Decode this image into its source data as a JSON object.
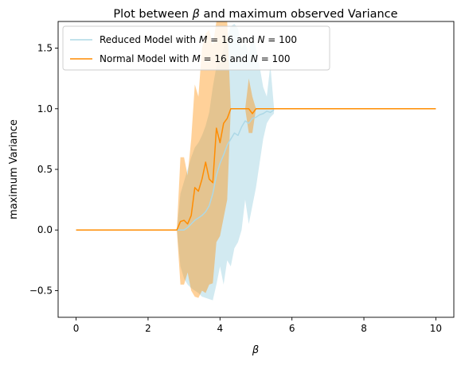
{
  "chart_data": {
    "type": "line",
    "title_prefix": "Plot between ",
    "title_symbol": "β",
    "title_suffix": " and maximum observed Variance",
    "xlabel": "β",
    "ylabel": "maximum Variance",
    "xlim": [
      -0.5,
      10.5
    ],
    "ylim": [
      -0.72,
      1.72
    ],
    "xticks": [
      "0",
      "2",
      "4",
      "6",
      "8",
      "10"
    ],
    "yticks": [
      "−0.5",
      "0.0",
      "0.5",
      "1.0",
      "1.5"
    ],
    "grid": false,
    "legend_position": "top-left",
    "series": [
      {
        "name_prefix": "Reduced Model with ",
        "name_m": "M",
        "name_mid": " = 16 and ",
        "name_n": "N",
        "name_suffix": " = 100",
        "color": "#add8e6",
        "x": [
          0,
          2.8,
          2.9,
          3.0,
          3.1,
          3.2,
          3.3,
          3.4,
          3.5,
          3.6,
          3.7,
          3.8,
          3.9,
          4.0,
          4.1,
          4.2,
          4.3,
          4.4,
          4.5,
          4.6,
          4.7,
          4.8,
          4.9,
          5.0,
          5.1,
          5.2,
          5.3,
          5.4,
          5.5
        ],
        "y": [
          0,
          0,
          0.0,
          0.0,
          0.02,
          0.05,
          0.08,
          0.1,
          0.12,
          0.15,
          0.2,
          0.3,
          0.45,
          0.55,
          0.62,
          0.7,
          0.75,
          0.8,
          0.78,
          0.85,
          0.9,
          0.88,
          0.92,
          0.93,
          0.95,
          0.96,
          0.98,
          0.97,
          0.99
        ],
        "lower": [
          0,
          0,
          -0.3,
          -0.4,
          -0.45,
          -0.48,
          -0.5,
          -0.52,
          -0.55,
          -0.56,
          -0.57,
          -0.58,
          -0.45,
          -0.3,
          -0.45,
          -0.25,
          -0.3,
          -0.15,
          -0.1,
          0.0,
          0.25,
          0.05,
          0.2,
          0.35,
          0.55,
          0.75,
          0.88,
          0.93,
          0.96
        ],
        "upper": [
          0,
          0,
          0.3,
          0.4,
          0.5,
          0.6,
          0.68,
          0.72,
          0.78,
          0.86,
          0.97,
          1.18,
          1.35,
          1.4,
          1.5,
          1.6,
          1.68,
          1.7,
          1.66,
          1.5,
          1.55,
          1.45,
          1.62,
          1.5,
          1.35,
          1.18,
          1.1,
          1.36,
          1.01
        ]
      },
      {
        "name_prefix": "Normal Model with ",
        "name_m": "M",
        "name_mid": " = 16 and ",
        "name_n": "N",
        "name_suffix": " = 100",
        "color": "#ff8c00",
        "x": [
          0,
          2.8,
          2.9,
          3.0,
          3.1,
          3.2,
          3.3,
          3.4,
          3.5,
          3.6,
          3.7,
          3.8,
          3.9,
          4.0,
          4.1,
          4.2,
          4.3,
          4.4,
          4.5,
          4.6,
          4.7,
          4.8,
          4.9,
          5.0,
          5.5,
          6.0,
          8.0,
          10.0
        ],
        "y": [
          0,
          0,
          0.07,
          0.08,
          0.05,
          0.12,
          0.35,
          0.32,
          0.42,
          0.56,
          0.42,
          0.39,
          0.84,
          0.72,
          0.88,
          0.92,
          1.0,
          1.0,
          1.0,
          1.0,
          1.0,
          1.0,
          0.96,
          1.0,
          1.0,
          1.0,
          1.0,
          1.0
        ],
        "lower": [
          0,
          0,
          -0.45,
          -0.45,
          -0.35,
          -0.5,
          -0.55,
          -0.56,
          -0.5,
          -0.52,
          -0.45,
          -0.44,
          -0.1,
          -0.05,
          0.1,
          0.25,
          1.0,
          1.0,
          1.0,
          1.0,
          1.0,
          0.8,
          0.8,
          1.0,
          1.0,
          1.0,
          1.0,
          1.0
        ],
        "upper": [
          0,
          0,
          0.6,
          0.6,
          0.45,
          0.75,
          1.2,
          1.1,
          1.5,
          1.62,
          1.65,
          1.52,
          1.72,
          1.72,
          1.72,
          1.72,
          1.0,
          1.0,
          1.0,
          1.0,
          1.0,
          1.25,
          1.1,
          1.0,
          1.0,
          1.0,
          1.0,
          1.0
        ]
      }
    ]
  }
}
